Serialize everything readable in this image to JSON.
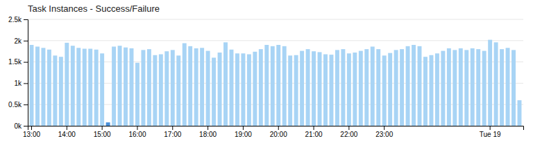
{
  "chart_data": {
    "type": "bar",
    "title": "Task Instances - Success/Failure",
    "categories": [
      "13:00",
      null,
      null,
      null,
      null,
      null,
      "14:00",
      null,
      null,
      null,
      null,
      null,
      "15:00",
      null,
      null,
      null,
      null,
      null,
      "16:00",
      null,
      null,
      null,
      null,
      null,
      "17:00",
      null,
      null,
      null,
      null,
      null,
      "18:00",
      null,
      null,
      null,
      null,
      null,
      "19:00",
      null,
      null,
      null,
      null,
      null,
      "20:00",
      null,
      null,
      null,
      null,
      null,
      "21:00",
      null,
      null,
      null,
      null,
      null,
      "22:00",
      null,
      null,
      null,
      null,
      null,
      "23:00",
      null,
      null,
      null,
      null,
      null,
      null,
      null,
      null,
      null,
      null,
      null,
      null,
      null,
      null,
      null,
      null,
      null,
      "Tue 19",
      null,
      null,
      null,
      null,
      null
    ],
    "values": [
      1900,
      1860,
      1830,
      1790,
      1650,
      1620,
      1950,
      1880,
      1830,
      1810,
      1810,
      1790,
      1700,
      80,
      1860,
      1880,
      1840,
      1820,
      1480,
      1780,
      1800,
      1660,
      1680,
      1750,
      1780,
      1650,
      1940,
      1870,
      1820,
      1830,
      1760,
      1600,
      1720,
      1960,
      1790,
      1700,
      1700,
      1680,
      1740,
      1800,
      1900,
      1870,
      1900,
      1870,
      1650,
      1660,
      1760,
      1800,
      1750,
      1730,
      1680,
      1670,
      1780,
      1800,
      1700,
      1720,
      1760,
      1800,
      1860,
      1800,
      1650,
      1710,
      1780,
      1800,
      1870,
      1900,
      1870,
      1620,
      1660,
      1700,
      1760,
      1820,
      1780,
      1820,
      1780,
      1820,
      1800,
      1760,
      2020,
      1960,
      1800,
      1830,
      1780,
      600
    ],
    "colors": [
      "#a8d4f5",
      "#a8d4f5",
      "#a8d4f5",
      "#a8d4f5",
      "#a8d4f5",
      "#a8d4f5",
      "#a8d4f5",
      "#a8d4f5",
      "#a8d4f5",
      "#a8d4f5",
      "#a8d4f5",
      "#a8d4f5",
      "#a8d4f5",
      "#4a90d9",
      "#a8d4f5",
      "#a8d4f5",
      "#a8d4f5",
      "#a8d4f5",
      "#a8d4f5",
      "#a8d4f5",
      "#a8d4f5",
      "#a8d4f5",
      "#a8d4f5",
      "#a8d4f5",
      "#a8d4f5",
      "#a8d4f5",
      "#a8d4f5",
      "#a8d4f5",
      "#a8d4f5",
      "#a8d4f5",
      "#a8d4f5",
      "#a8d4f5",
      "#a8d4f5",
      "#a8d4f5",
      "#a8d4f5",
      "#a8d4f5",
      "#a8d4f5",
      "#a8d4f5",
      "#a8d4f5",
      "#a8d4f5",
      "#a8d4f5",
      "#a8d4f5",
      "#a8d4f5",
      "#a8d4f5",
      "#a8d4f5",
      "#a8d4f5",
      "#a8d4f5",
      "#a8d4f5",
      "#a8d4f5",
      "#a8d4f5",
      "#a8d4f5",
      "#a8d4f5",
      "#a8d4f5",
      "#a8d4f5",
      "#a8d4f5",
      "#a8d4f5",
      "#a8d4f5",
      "#a8d4f5",
      "#a8d4f5",
      "#a8d4f5",
      "#a8d4f5",
      "#a8d4f5",
      "#a8d4f5",
      "#a8d4f5",
      "#a8d4f5",
      "#a8d4f5",
      "#a8d4f5",
      "#a8d4f5",
      "#a8d4f5",
      "#a8d4f5",
      "#a8d4f5",
      "#a8d4f5",
      "#a8d4f5",
      "#a8d4f5",
      "#a8d4f5",
      "#a8d4f5",
      "#a8d4f5",
      "#a8d4f5",
      "#a8d4f5",
      "#a8d4f5",
      "#a8d4f5",
      "#a8d4f5",
      "#a8d4f5",
      "#a8d4f5"
    ],
    "ylim": [
      0,
      2500
    ],
    "yticks": [
      {
        "value": 0,
        "label": "0k"
      },
      {
        "value": 500,
        "label": "0.5k"
      },
      {
        "value": 1000,
        "label": "1k"
      },
      {
        "value": 1500,
        "label": "1.5k"
      },
      {
        "value": 2000,
        "label": "2k"
      },
      {
        "value": 2500,
        "label": "2.5k"
      }
    ],
    "grid": true
  }
}
